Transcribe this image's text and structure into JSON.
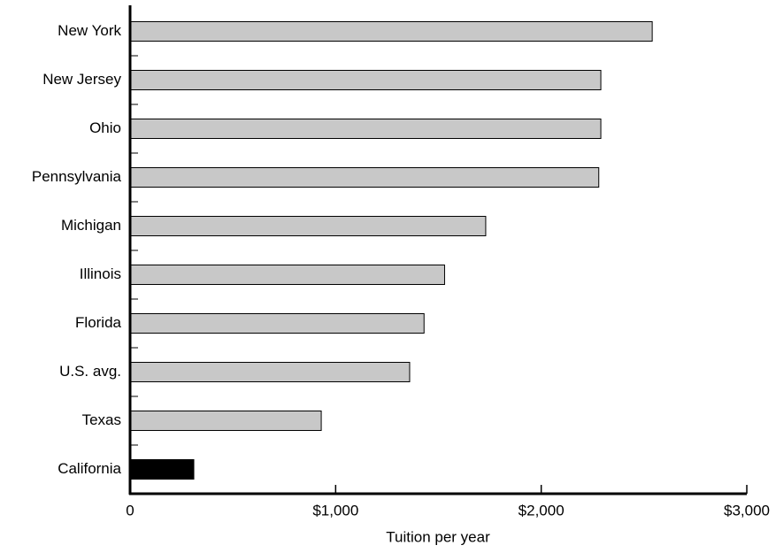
{
  "chart_data": {
    "type": "bar",
    "orientation": "horizontal",
    "categories": [
      "New York",
      "New Jersey",
      "Ohio",
      "Pennsylvania",
      "Michigan",
      "Illinois",
      "Florida",
      "U.S. avg.",
      "Texas",
      "California"
    ],
    "values": [
      2540,
      2290,
      2290,
      2280,
      1730,
      1530,
      1430,
      1360,
      930,
      310
    ],
    "colors": [
      "#c8c8c8",
      "#c8c8c8",
      "#c8c8c8",
      "#c8c8c8",
      "#c8c8c8",
      "#c8c8c8",
      "#c8c8c8",
      "#c8c8c8",
      "#c8c8c8",
      "#000000"
    ],
    "xlabel": "Tuition per year",
    "xlim": [
      0,
      3000
    ],
    "xticks": [
      0,
      {
        "value": 1000,
        "label": "$1,000"
      },
      {
        "value": 2000,
        "label": "$2,000"
      },
      {
        "value": 3000,
        "label": "$3,000"
      }
    ],
    "grid": false
  }
}
